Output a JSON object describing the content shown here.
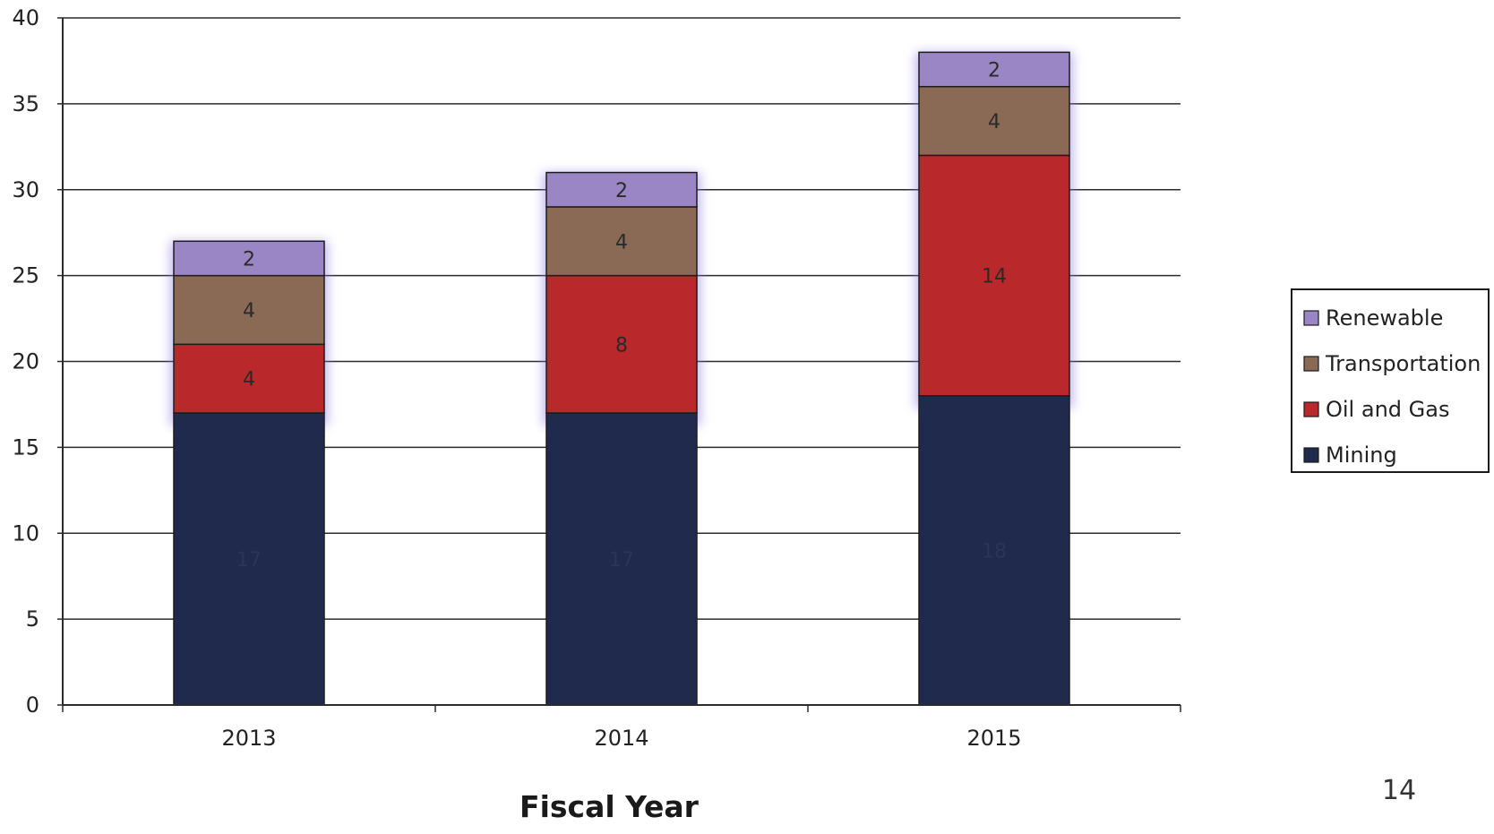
{
  "chart_data": {
    "type": "bar",
    "stacked": true,
    "categories": [
      "2013",
      "2014",
      "2015"
    ],
    "series": [
      {
        "name": "Mining",
        "values": [
          17,
          17,
          18
        ],
        "color": "#1f2a4d"
      },
      {
        "name": "Oil and Gas",
        "values": [
          4,
          8,
          14
        ],
        "color": "#b9282b"
      },
      {
        "name": "Transportation",
        "values": [
          4,
          4,
          4
        ],
        "color": "#8b6a55"
      },
      {
        "name": "Renewable",
        "values": [
          2,
          2,
          2
        ],
        "color": "#9b86c5"
      }
    ],
    "title": "",
    "xlabel": "Fiscal Year",
    "ylabel": "",
    "ylim": [
      0,
      40
    ],
    "yticks": [
      "0",
      "5",
      "10",
      "15",
      "20",
      "25",
      "30",
      "35",
      "40"
    ],
    "grid": true,
    "legend_position": "right"
  },
  "page": {
    "number": "14"
  }
}
